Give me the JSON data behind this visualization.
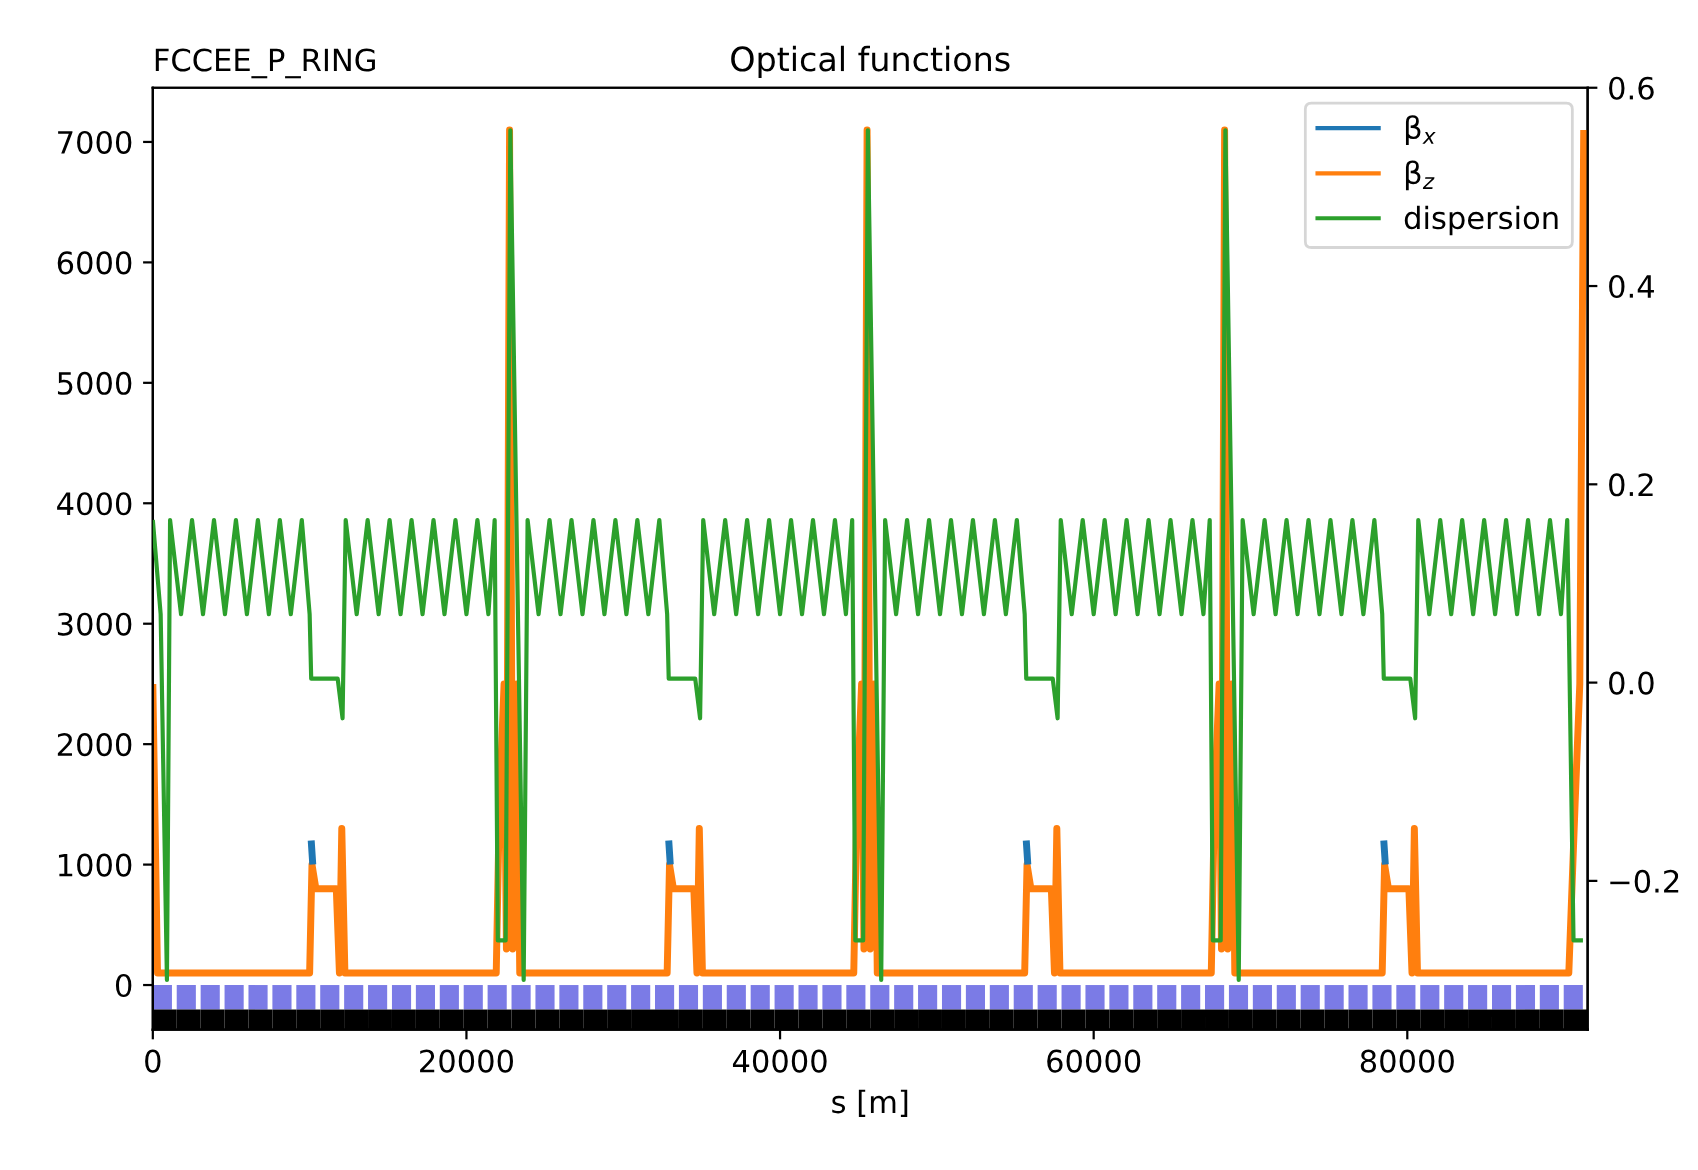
{
  "chart_data": {
    "type": "line",
    "title": "Optical functions",
    "subtitle": "FCCEE_P_RING",
    "xlabel": "s [m]",
    "xlim": [
      0,
      91500
    ],
    "xticks": [
      0,
      20000,
      40000,
      60000,
      80000
    ],
    "ylim": [
      -370,
      7450
    ],
    "yticks": [
      0,
      1000,
      2000,
      3000,
      4000,
      5000,
      6000,
      7000
    ],
    "y2lim": [
      -0.35,
      0.6
    ],
    "y2ticks": [
      {
        "value": -0.2,
        "label": "−0.2"
      },
      {
        "value": 0,
        "label": "0.0"
      },
      0.2,
      0.4,
      0.6
    ],
    "grid": false,
    "legend": "top right",
    "series": [
      {
        "name": "β$_{x}$",
        "color": "#1f77b4",
        "x": [
          10100,
          10200,
          null,
          32900,
          33000,
          null,
          55700,
          55800,
          null,
          78500,
          78600,
          null
        ],
        "values": [
          1200,
          1000,
          null,
          1200,
          1000,
          null,
          1200,
          1000,
          null,
          1200,
          1000,
          null
        ]
      },
      {
        "name": "β$_{z}$",
        "color": "#ff7f0e",
        "x": [
          0,
          300,
          10000,
          10150,
          10400,
          11700,
          11900,
          12050,
          12250,
          21900,
          22100,
          22400,
          22550,
          22750,
          22950,
          23200,
          23400,
          32800,
          32950,
          33200,
          34500,
          34700,
          34850,
          35050,
          44700,
          44900,
          45200,
          45350,
          45550,
          45750,
          46000,
          46200,
          55600,
          55750,
          56000,
          57300,
          57500,
          57650,
          57850,
          67500,
          67700,
          68000,
          68150,
          68350,
          68550,
          68800,
          69000,
          78400,
          78550,
          78800,
          80100,
          80300,
          80450,
          80650,
          90300,
          90700,
          91000,
          91250
        ],
        "values": [
          2500,
          100,
          100,
          1000,
          800,
          800,
          100,
          1300,
          100,
          100,
          1500,
          2500,
          300,
          7100,
          300,
          2500,
          100,
          100,
          1000,
          800,
          800,
          100,
          1300,
          100,
          100,
          1500,
          2500,
          300,
          7100,
          300,
          2500,
          100,
          100,
          1000,
          800,
          800,
          100,
          1300,
          100,
          100,
          1500,
          2500,
          300,
          7100,
          300,
          2500,
          100,
          100,
          1000,
          800,
          800,
          100,
          1300,
          100,
          100,
          1500,
          2500,
          7100
        ]
      },
      {
        "name": "dispersion",
        "color": "#2ca02c",
        "axis": "y2",
        "x": [
          0,
          500,
          900,
          1100,
          1800,
          2500,
          3200,
          3900,
          4600,
          5300,
          6000,
          6700,
          7400,
          8100,
          8800,
          9500,
          10000,
          10100,
          11790,
          12100,
          12300,
          13000,
          13700,
          14400,
          15100,
          15800,
          16500,
          17200,
          17900,
          18600,
          19300,
          20000,
          20700,
          21400,
          21800,
          22000,
          22500,
          22800,
          23650,
          23900,
          24600,
          25300,
          26000,
          26700,
          27400,
          28100,
          28800,
          29500,
          30200,
          30900,
          31600,
          32300,
          32800,
          32900,
          34590,
          34900,
          35100,
          35800,
          36500,
          37200,
          37900,
          38600,
          39300,
          40000,
          40700,
          41400,
          42100,
          42800,
          43500,
          44200,
          44600,
          44800,
          45300,
          45600,
          46450,
          46700,
          47400,
          48100,
          48800,
          49500,
          50200,
          50900,
          51600,
          52300,
          53000,
          53700,
          54400,
          55100,
          55600,
          55700,
          57390,
          57700,
          57900,
          58600,
          59300,
          60000,
          60700,
          61400,
          62100,
          62800,
          63500,
          64200,
          64900,
          65600,
          66300,
          67000,
          67400,
          67600,
          68100,
          68400,
          69250,
          69500,
          70200,
          70900,
          71600,
          72300,
          73000,
          73700,
          74400,
          75100,
          75800,
          76500,
          77200,
          77900,
          78400,
          78500,
          80190,
          80500,
          80700,
          81400,
          82100,
          82800,
          83500,
          84200,
          84900,
          85600,
          86300,
          87000,
          87700,
          88400,
          89100,
          89800,
          90200,
          90600,
          91200
        ],
        "values": [
          0.164,
          0.069,
          -0.3,
          0.164,
          0.069,
          0.164,
          0.069,
          0.164,
          0.069,
          0.164,
          0.069,
          0.164,
          0.069,
          0.164,
          0.069,
          0.164,
          0.069,
          0.004,
          0.004,
          -0.036,
          0.164,
          0.069,
          0.164,
          0.069,
          0.164,
          0.069,
          0.164,
          0.069,
          0.164,
          0.069,
          0.164,
          0.069,
          0.164,
          0.069,
          0.164,
          -0.26,
          -0.26,
          0.557,
          -0.3,
          0.164,
          0.069,
          0.164,
          0.069,
          0.164,
          0.069,
          0.164,
          0.069,
          0.164,
          0.069,
          0.164,
          0.069,
          0.164,
          0.069,
          0.004,
          0.004,
          -0.036,
          0.164,
          0.069,
          0.164,
          0.069,
          0.164,
          0.069,
          0.164,
          0.069,
          0.164,
          0.069,
          0.164,
          0.069,
          0.164,
          0.069,
          0.164,
          -0.26,
          -0.26,
          0.557,
          -0.3,
          0.164,
          0.069,
          0.164,
          0.069,
          0.164,
          0.069,
          0.164,
          0.069,
          0.164,
          0.069,
          0.164,
          0.069,
          0.164,
          0.069,
          0.004,
          0.004,
          -0.036,
          0.164,
          0.069,
          0.164,
          0.069,
          0.164,
          0.069,
          0.164,
          0.069,
          0.164,
          0.069,
          0.164,
          0.069,
          0.164,
          0.069,
          0.164,
          -0.26,
          -0.26,
          0.557,
          -0.3,
          0.164,
          0.069,
          0.164,
          0.069,
          0.164,
          0.069,
          0.164,
          0.069,
          0.164,
          0.069,
          0.164,
          0.069,
          0.164,
          0.069,
          0.004,
          0.004,
          -0.036,
          0.164,
          0.069,
          0.164,
          0.069,
          0.164,
          0.069,
          0.164,
          0.069,
          0.164,
          0.069,
          0.164,
          0.069,
          0.164,
          0.069,
          0.164,
          -0.26,
          -0.26
        ]
      }
    ]
  }
}
